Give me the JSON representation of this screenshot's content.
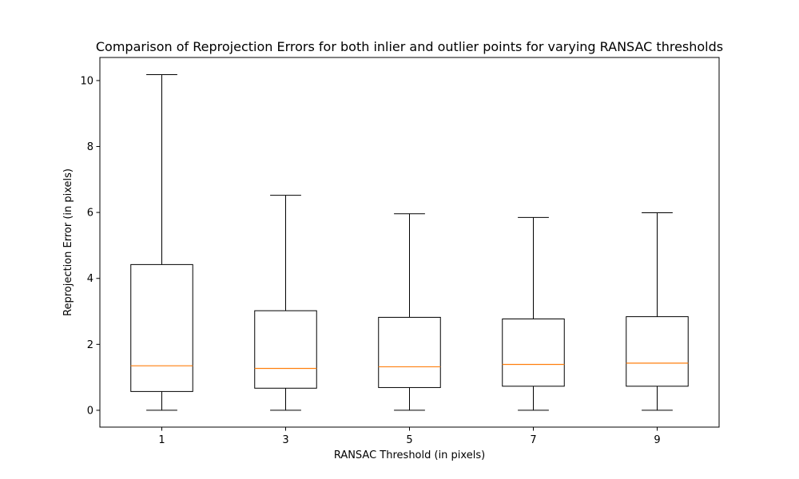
{
  "chart_data": {
    "type": "boxplot",
    "title": "Comparison of Reprojection Errors for both inlier and outlier points for varying RANSAC thresholds",
    "xlabel": "RANSAC Threshold (in pixels)",
    "ylabel": "Reprojection Error (in pixels)",
    "categories": [
      "1",
      "3",
      "5",
      "7",
      "9"
    ],
    "ylim": [
      -0.51,
      10.7
    ],
    "yticks": [
      0,
      2,
      4,
      6,
      8,
      10
    ],
    "boxes": [
      {
        "category": "1",
        "whisker_low": 0.0,
        "q1": 0.57,
        "median": 1.35,
        "q3": 4.42,
        "whisker_high": 10.18
      },
      {
        "category": "3",
        "whisker_low": 0.0,
        "q1": 0.67,
        "median": 1.27,
        "q3": 3.02,
        "whisker_high": 6.52
      },
      {
        "category": "5",
        "whisker_low": 0.0,
        "q1": 0.69,
        "median": 1.32,
        "q3": 2.82,
        "whisker_high": 5.96
      },
      {
        "category": "7",
        "whisker_low": 0.0,
        "q1": 0.73,
        "median": 1.39,
        "q3": 2.77,
        "whisker_high": 5.85
      },
      {
        "category": "9",
        "whisker_low": 0.0,
        "q1": 0.73,
        "median": 1.43,
        "q3": 2.84,
        "whisker_high": 5.99
      }
    ],
    "grid": false,
    "colors": {
      "box": "#000000",
      "median": "#ff7f0e"
    }
  }
}
